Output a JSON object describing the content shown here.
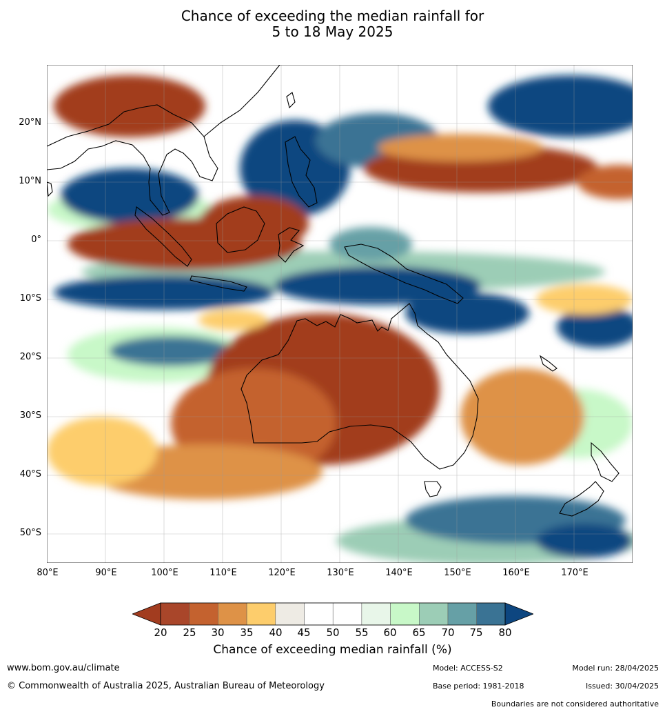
{
  "title": {
    "line1": "Chance of exceeding the median rainfall for",
    "line2": "5 to 18 May 2025"
  },
  "map": {
    "lat_labels": [
      "20°N",
      "10°N",
      "0°",
      "10°S",
      "20°S",
      "30°S",
      "40°S",
      "50°S"
    ],
    "lon_labels": [
      "80°E",
      "90°E",
      "100°E",
      "110°E",
      "120°E",
      "130°E",
      "140°E",
      "150°E",
      "160°E",
      "170°E"
    ],
    "lon_range": [
      80,
      180
    ],
    "lat_range": [
      -55,
      30
    ]
  },
  "colorbar": {
    "ticks": [
      "20",
      "25",
      "30",
      "35",
      "40",
      "45",
      "50",
      "55",
      "60",
      "65",
      "70",
      "75",
      "80"
    ],
    "colors": [
      "#a23c1f",
      "#a9462a",
      "#c4622f",
      "#de9247",
      "#fdcd6c",
      "#eeebe4",
      "#ffffff",
      "#ffffff",
      "#e8f6e9",
      "#c8f8c8",
      "#9ccdb6",
      "#66a0a6",
      "#3a7394",
      "#0d4680"
    ],
    "label": "Chance of exceeding median rainfall (%)"
  },
  "footer": {
    "website": "www.bom.gov.au/climate",
    "copyright": "© Commonwealth of Australia 2025, Australian Bureau of Meteorology",
    "model": "Model: ACCESS-S2",
    "base_period": "Base period: 1981-2018",
    "model_run": "Model run: 28/04/2025",
    "issued": "Issued: 30/04/2025",
    "disclaimer": "Boundaries are not considered authoritative"
  }
}
